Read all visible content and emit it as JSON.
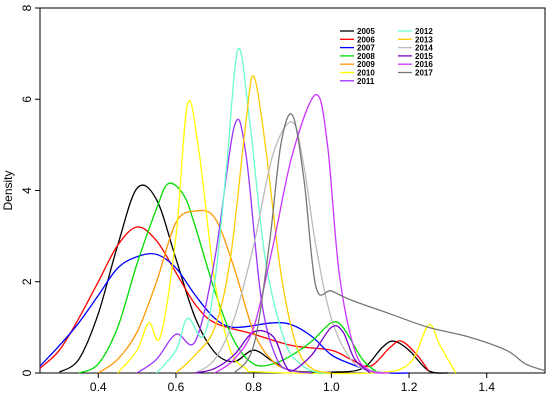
{
  "chart_data": {
    "type": "line",
    "title": "",
    "xlabel": "",
    "ylabel": "Density",
    "xlim": [
      0.25,
      1.55
    ],
    "ylim": [
      0,
      8
    ],
    "xticks": [
      "0.4",
      "0.6",
      "0.8",
      "1.0",
      "1.2",
      "1.4"
    ],
    "yticks": [
      "0",
      "2",
      "4",
      "6",
      "8"
    ],
    "legend_position": "top-right",
    "grid": false,
    "series": [
      {
        "name": "2005",
        "color": "#000000",
        "points": [
          [
            0.3,
            0.02
          ],
          [
            0.35,
            0.3
          ],
          [
            0.4,
            1.3
          ],
          [
            0.45,
            2.8
          ],
          [
            0.5,
            4.05
          ],
          [
            0.55,
            3.8
          ],
          [
            0.6,
            2.5
          ],
          [
            0.65,
            1.2
          ],
          [
            0.7,
            0.45
          ],
          [
            0.75,
            0.25
          ],
          [
            0.8,
            0.5
          ],
          [
            0.85,
            0.25
          ],
          [
            0.9,
            0.05
          ],
          [
            1.0,
            0.02
          ],
          [
            1.08,
            0.1
          ],
          [
            1.13,
            0.55
          ],
          [
            1.16,
            0.7
          ],
          [
            1.2,
            0.5
          ],
          [
            1.25,
            0.05
          ],
          [
            1.3,
            0.0
          ]
        ]
      },
      {
        "name": "2006",
        "color": "#ff0000",
        "points": [
          [
            0.25,
            0.1
          ],
          [
            0.3,
            0.5
          ],
          [
            0.35,
            1.2
          ],
          [
            0.4,
            2.0
          ],
          [
            0.45,
            2.8
          ],
          [
            0.5,
            3.2
          ],
          [
            0.55,
            2.9
          ],
          [
            0.6,
            2.2
          ],
          [
            0.65,
            1.5
          ],
          [
            0.7,
            1.1
          ],
          [
            0.8,
            0.85
          ],
          [
            0.9,
            0.6
          ],
          [
            1.0,
            0.5
          ],
          [
            1.05,
            0.3
          ],
          [
            1.1,
            0.15
          ],
          [
            1.15,
            0.55
          ],
          [
            1.18,
            0.7
          ],
          [
            1.22,
            0.4
          ],
          [
            1.25,
            0.05
          ]
        ]
      },
      {
        "name": "2007",
        "color": "#0000ff",
        "points": [
          [
            0.25,
            0.15
          ],
          [
            0.3,
            0.6
          ],
          [
            0.35,
            1.1
          ],
          [
            0.4,
            1.7
          ],
          [
            0.45,
            2.3
          ],
          [
            0.5,
            2.55
          ],
          [
            0.55,
            2.6
          ],
          [
            0.6,
            2.3
          ],
          [
            0.65,
            1.7
          ],
          [
            0.7,
            1.2
          ],
          [
            0.75,
            1.0
          ],
          [
            0.85,
            1.1
          ],
          [
            0.9,
            1.05
          ],
          [
            0.95,
            0.8
          ],
          [
            1.0,
            0.4
          ],
          [
            1.05,
            0.2
          ],
          [
            1.1,
            0.05
          ],
          [
            1.15,
            0.0
          ],
          [
            1.2,
            0.0
          ]
        ]
      },
      {
        "name": "2008",
        "color": "#00dd00",
        "points": [
          [
            0.35,
            0.0
          ],
          [
            0.4,
            0.2
          ],
          [
            0.45,
            1.0
          ],
          [
            0.5,
            2.4
          ],
          [
            0.55,
            3.6
          ],
          [
            0.58,
            4.15
          ],
          [
            0.62,
            3.9
          ],
          [
            0.65,
            3.2
          ],
          [
            0.7,
            1.8
          ],
          [
            0.75,
            0.7
          ],
          [
            0.8,
            0.2
          ],
          [
            0.85,
            0.2
          ],
          [
            0.9,
            0.4
          ],
          [
            0.95,
            0.7
          ],
          [
            1.0,
            1.1
          ],
          [
            1.03,
            1.0
          ],
          [
            1.08,
            0.3
          ],
          [
            1.12,
            0.0
          ]
        ]
      },
      {
        "name": "2009",
        "color": "#ff9900",
        "points": [
          [
            0.4,
            0.0
          ],
          [
            0.45,
            0.3
          ],
          [
            0.5,
            0.9
          ],
          [
            0.55,
            2.0
          ],
          [
            0.6,
            3.3
          ],
          [
            0.65,
            3.55
          ],
          [
            0.7,
            3.4
          ],
          [
            0.75,
            2.3
          ],
          [
            0.8,
            0.9
          ],
          [
            0.85,
            0.25
          ],
          [
            0.9,
            0.05
          ],
          [
            0.95,
            0.0
          ]
        ]
      },
      {
        "name": "2010",
        "color": "#ffff00",
        "points": [
          [
            0.45,
            0.0
          ],
          [
            0.5,
            0.5
          ],
          [
            0.53,
            1.1
          ],
          [
            0.56,
            0.8
          ],
          [
            0.6,
            3.0
          ],
          [
            0.63,
            5.9
          ],
          [
            0.66,
            4.8
          ],
          [
            0.7,
            2.0
          ],
          [
            0.74,
            0.5
          ],
          [
            0.78,
            0.1
          ],
          [
            0.82,
            0.02
          ],
          [
            1.1,
            0.0
          ],
          [
            1.2,
            0.2
          ],
          [
            1.25,
            1.05
          ],
          [
            1.28,
            0.6
          ],
          [
            1.32,
            0.0
          ]
        ]
      },
      {
        "name": "2011",
        "color": "#9933ff",
        "points": [
          [
            0.5,
            0.0
          ],
          [
            0.55,
            0.3
          ],
          [
            0.6,
            0.85
          ],
          [
            0.65,
            0.7
          ],
          [
            0.7,
            2.5
          ],
          [
            0.75,
            5.4
          ],
          [
            0.78,
            4.8
          ],
          [
            0.82,
            1.6
          ],
          [
            0.86,
            0.3
          ],
          [
            0.9,
            0.05
          ],
          [
            0.95,
            0.0
          ]
        ]
      },
      {
        "name": "2012",
        "color": "#66ffcc",
        "points": [
          [
            0.55,
            0.0
          ],
          [
            0.6,
            0.5
          ],
          [
            0.63,
            1.2
          ],
          [
            0.67,
            0.8
          ],
          [
            0.7,
            2.0
          ],
          [
            0.73,
            4.5
          ],
          [
            0.76,
            7.1
          ],
          [
            0.79,
            5.5
          ],
          [
            0.83,
            2.5
          ],
          [
            0.88,
            0.7
          ],
          [
            0.92,
            0.2
          ],
          [
            0.96,
            0.02
          ],
          [
            1.0,
            0.0
          ]
        ]
      },
      {
        "name": "2013",
        "color": "#ffcc00",
        "points": [
          [
            0.6,
            0.0
          ],
          [
            0.65,
            0.4
          ],
          [
            0.7,
            1.0
          ],
          [
            0.74,
            2.5
          ],
          [
            0.78,
            5.5
          ],
          [
            0.8,
            6.5
          ],
          [
            0.83,
            5.0
          ],
          [
            0.87,
            2.2
          ],
          [
            0.91,
            0.6
          ],
          [
            0.95,
            0.1
          ],
          [
            1.0,
            0.0
          ]
        ]
      },
      {
        "name": "2014",
        "color": "#bbbbbb",
        "points": [
          [
            0.65,
            0.0
          ],
          [
            0.7,
            0.3
          ],
          [
            0.75,
            1.2
          ],
          [
            0.8,
            2.8
          ],
          [
            0.85,
            4.8
          ],
          [
            0.9,
            5.5
          ],
          [
            0.93,
            4.5
          ],
          [
            0.96,
            2.8
          ],
          [
            1.0,
            1.2
          ],
          [
            1.05,
            0.3
          ],
          [
            1.1,
            0.05
          ],
          [
            1.15,
            0.0
          ]
        ]
      },
      {
        "name": "2015",
        "color": "#7700cc",
        "points": [
          [
            0.65,
            0.0
          ],
          [
            0.7,
            0.1
          ],
          [
            0.75,
            0.4
          ],
          [
            0.8,
            0.9
          ],
          [
            0.85,
            0.8
          ],
          [
            0.88,
            0.2
          ],
          [
            0.9,
            0.05
          ],
          [
            0.95,
            0.4
          ],
          [
            1.0,
            1.0
          ],
          [
            1.03,
            0.9
          ],
          [
            1.06,
            0.3
          ],
          [
            1.1,
            0.0
          ]
        ]
      },
      {
        "name": "2016",
        "color": "#cc33ff",
        "points": [
          [
            0.7,
            0.0
          ],
          [
            0.75,
            0.3
          ],
          [
            0.8,
            1.0
          ],
          [
            0.85,
            2.8
          ],
          [
            0.9,
            4.8
          ],
          [
            0.96,
            6.1
          ],
          [
            0.99,
            5.0
          ],
          [
            1.02,
            2.2
          ],
          [
            1.06,
            0.5
          ],
          [
            1.1,
            0.05
          ],
          [
            1.15,
            0.0
          ]
        ]
      },
      {
        "name": "2017",
        "color": "#777777",
        "points": [
          [
            0.75,
            0.0
          ],
          [
            0.8,
            0.6
          ],
          [
            0.84,
            2.8
          ],
          [
            0.87,
            5.0
          ],
          [
            0.9,
            5.65
          ],
          [
            0.93,
            4.2
          ],
          [
            0.96,
            1.9
          ],
          [
            1.0,
            1.8
          ],
          [
            1.05,
            1.6
          ],
          [
            1.15,
            1.3
          ],
          [
            1.25,
            1.0
          ],
          [
            1.35,
            0.8
          ],
          [
            1.45,
            0.5
          ],
          [
            1.5,
            0.2
          ],
          [
            1.55,
            0.05
          ]
        ]
      }
    ]
  }
}
